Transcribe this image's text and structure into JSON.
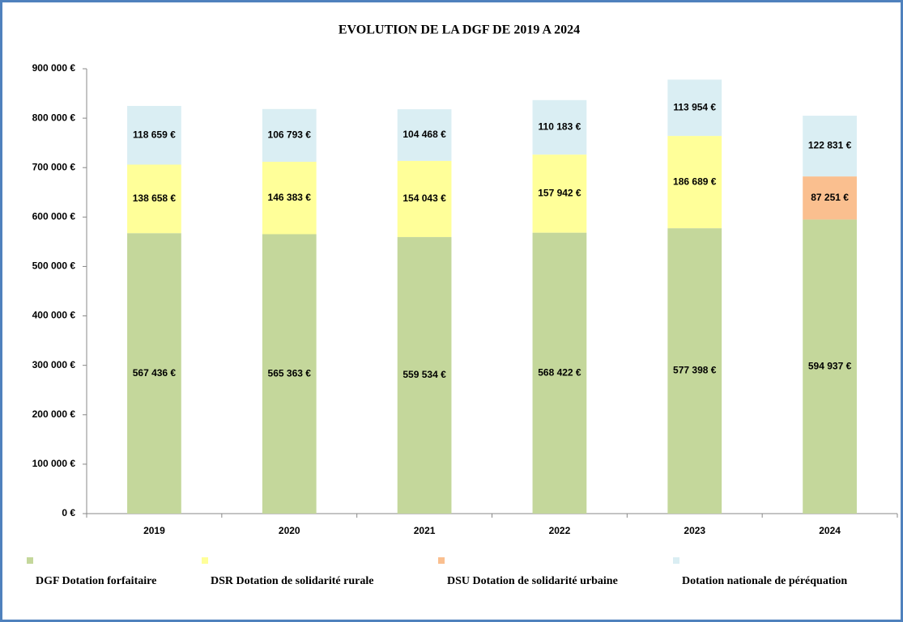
{
  "chart_data": {
    "type": "stacked_bar",
    "title": "EVOLUTION DE LA DGF DE 2019 A 2024",
    "categories": [
      "2019",
      "2020",
      "2021",
      "2022",
      "2023",
      "2024"
    ],
    "series": [
      {
        "name": "DGF Dotation forfaitaire",
        "color": "#c4d79b",
        "values": [
          567436,
          565363,
          559534,
          568422,
          577398,
          594937
        ],
        "value_labels": [
          "567 436 €",
          "565 363 €",
          "559 534 €",
          "568 422 €",
          "577 398 €",
          "594 937 €"
        ]
      },
      {
        "name": "DSR Dotation de solidarité rurale",
        "color": "#ffff99",
        "values": [
          138658,
          146383,
          154043,
          157942,
          186689,
          null
        ],
        "value_labels": [
          "138 658 €",
          "146 383 €",
          "154 043 €",
          "157 942 €",
          "186 689 €",
          null
        ]
      },
      {
        "name": "DSU Dotation de solidarité urbaine",
        "color": "#fabf8f",
        "values": [
          null,
          null,
          null,
          null,
          null,
          87251
        ],
        "value_labels": [
          null,
          null,
          null,
          null,
          null,
          "87 251 €"
        ]
      },
      {
        "name": "Dotation nationale de péréquation",
        "color": "#daeef3",
        "values": [
          118659,
          106793,
          104468,
          110183,
          113954,
          122831
        ],
        "value_labels": [
          "118 659 €",
          "106 793 €",
          "104 468 €",
          "110 183 €",
          "113 954 €",
          "122 831 €"
        ]
      }
    ],
    "ylim": [
      0,
      900000
    ],
    "yticks": [
      {
        "value": 0,
        "label": "0 €"
      },
      {
        "value": 100000,
        "label": "100 000 €"
      },
      {
        "value": 200000,
        "label": "200 000 €"
      },
      {
        "value": 300000,
        "label": "300 000 €"
      },
      {
        "value": 400000,
        "label": "400 000 €"
      },
      {
        "value": 500000,
        "label": "500 000 €"
      },
      {
        "value": 600000,
        "label": "600 000 €"
      },
      {
        "value": 700000,
        "label": "700 000 €"
      },
      {
        "value": 800000,
        "label": "800 000 €"
      },
      {
        "value": 900000,
        "label": "900 000 €"
      }
    ],
    "grid": false,
    "legend": "bottom"
  }
}
